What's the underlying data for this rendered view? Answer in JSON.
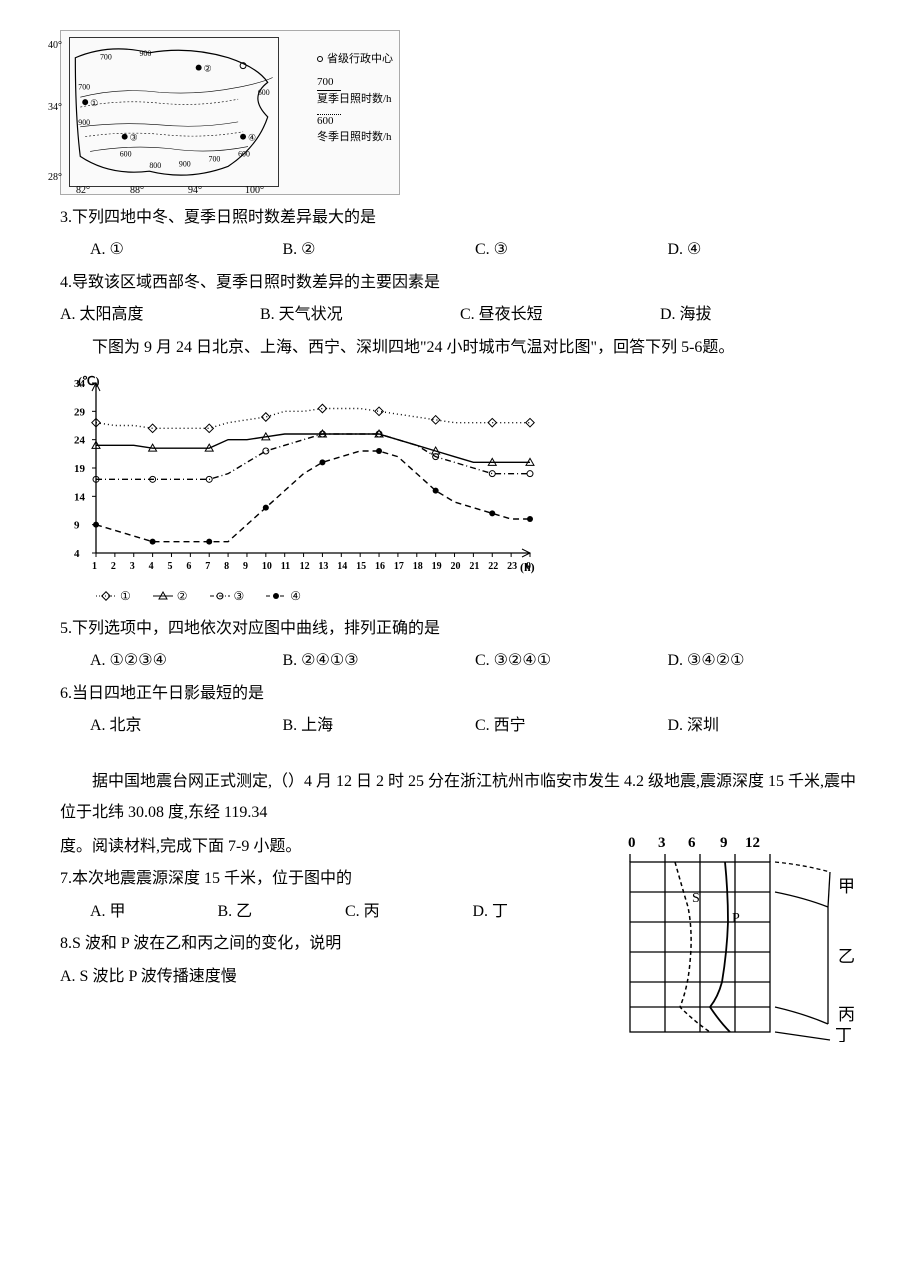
{
  "map_figure": {
    "y_ticks": [
      "40°",
      "34°",
      "28°"
    ],
    "x_ticks": [
      "82°",
      "88°",
      "94°",
      "100°"
    ],
    "contour_labels": [
      "700",
      "900",
      "900",
      "700",
      "600",
      "900",
      "700",
      "800",
      "900",
      "700",
      "600",
      "700",
      "600"
    ],
    "points": [
      "①",
      "②",
      "③",
      "④"
    ],
    "legend": {
      "center": "省级行政中心",
      "solid_num": "700",
      "solid_label": "夏季日照时数/h",
      "dotted_num": "600",
      "dotted_label": "冬季日照时数/h"
    }
  },
  "q3": {
    "text": "3.下列四地中冬、夏季日照时数差异最大的是",
    "opts": {
      "a": "A. ①",
      "b": "B. ②",
      "c": "C. ③",
      "d": "D. ④"
    }
  },
  "q4": {
    "text": "4.导致该区域西部冬、夏季日照时数差异的主要因素是",
    "opts": {
      "a": "A. 太阳高度",
      "b": "B. 天气状况",
      "c": "C. 昼夜长短",
      "d": "D. 海拔"
    }
  },
  "intro56": "下图为 9 月 24 日北京、上海、西宁、深圳四地\"24 小时城市气温对比图\"，回答下列 5-6题。",
  "temp_chart": {
    "y_unit": "(℃)",
    "x_unit": "(h)",
    "y_ticks": [
      34,
      29,
      24,
      19,
      14,
      9,
      4
    ],
    "x_ticks": [
      1,
      2,
      3,
      4,
      5,
      6,
      7,
      8,
      9,
      10,
      11,
      12,
      13,
      14,
      15,
      16,
      17,
      18,
      19,
      20,
      21,
      22,
      23,
      0
    ],
    "series": {
      "s1": {
        "marker": "diamond",
        "style": "dotted",
        "label": "①",
        "y": [
          27,
          26.5,
          26.5,
          26,
          26,
          26,
          26,
          27,
          27.5,
          28,
          29,
          29,
          29.5,
          29.5,
          29.5,
          29,
          28.5,
          28,
          27.5,
          27,
          27,
          27,
          27,
          27
        ]
      },
      "s2": {
        "marker": "triangle",
        "style": "solid",
        "label": "②",
        "y": [
          23,
          23,
          23,
          22.5,
          22.5,
          22.5,
          22.5,
          24,
          24,
          24.5,
          25,
          25,
          25,
          25,
          25,
          25,
          24,
          23,
          22,
          21,
          20,
          20,
          20,
          20
        ]
      },
      "s3": {
        "marker": "circle",
        "style": "dashdot",
        "label": "③",
        "y": [
          17,
          17,
          17,
          17,
          17,
          17,
          17,
          18,
          20,
          22,
          23,
          24,
          25,
          25,
          25,
          25,
          24,
          23,
          21,
          20,
          19,
          18,
          18,
          18
        ]
      },
      "s4": {
        "marker": "filled",
        "style": "dashed",
        "label": "④",
        "y": [
          9,
          8,
          7,
          6,
          6,
          6,
          6,
          6,
          9,
          12,
          15,
          18,
          20,
          21,
          22,
          22,
          21,
          18,
          15,
          13,
          12,
          11,
          10,
          10
        ]
      }
    },
    "colors": {
      "line": "#000000",
      "grid": "#000000",
      "bg": "#ffffff"
    }
  },
  "q5": {
    "text": "5.下列选项中，四地依次对应图中曲线，排列正确的是",
    "opts": {
      "a": "A. ①②③④",
      "b": "B. ②④①③",
      "c": "C. ③②④①",
      "d": "D. ③④②①"
    }
  },
  "q6": {
    "text": "6.当日四地正午日影最短的是",
    "opts": {
      "a": "A. 北京",
      "b": "B. 上海",
      "c": "C. 西宁",
      "d": "D. 深圳"
    }
  },
  "intro79a": "据中国地震台网正式测定,（）4 月 12 日 2 时 25 分在浙江杭州市临安市发生 4.2 级地震,震源深度 15 千米,震中位于北纬 30.08 度,东经 119.34",
  "intro79b": "度。阅读材料,完成下面 7-9 小题。",
  "q7": {
    "text": "7.本次地震震源深度 15 千米，位于图中的",
    "opts": {
      "a": "A. 甲",
      "b": "B. 乙",
      "c": "C. 丙",
      "d": "D. 丁"
    }
  },
  "q8": {
    "text": "8.S 波和 P 波在乙和丙之间的变化，说明",
    "opta": "A. S 波比 P 波传播速度慢"
  },
  "seismic_figure": {
    "x_ticks": [
      "0",
      "3",
      "6",
      "9",
      "12"
    ],
    "labels": {
      "s": "S",
      "p": "P",
      "jia": "甲",
      "yi": "乙",
      "bing": "丙",
      "ding": "丁"
    }
  }
}
